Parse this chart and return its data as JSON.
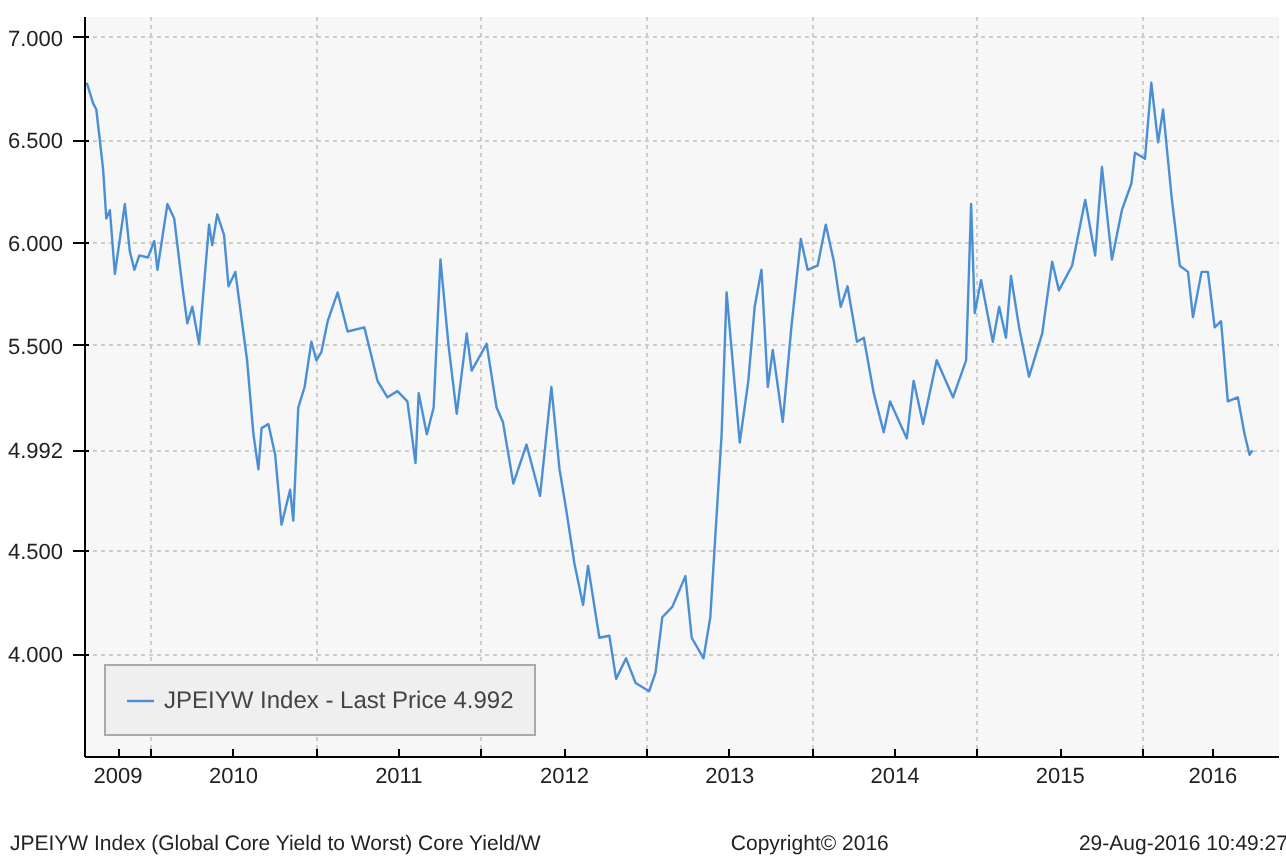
{
  "chart_data": {
    "type": "line",
    "xlim": [
      "2009-08-08",
      "2016-10-27"
    ],
    "ylim": [
      3.5,
      7.1
    ],
    "xticks": [
      {
        "value": "2009-10-20",
        "label": "2009"
      },
      {
        "value": "2010-01-01",
        "label": null
      },
      {
        "value": "2010-07-02",
        "label": "2010"
      },
      {
        "value": "2011-01-01",
        "label": null
      },
      {
        "value": "2011-07-02",
        "label": "2011"
      },
      {
        "value": "2012-01-01",
        "label": null
      },
      {
        "value": "2012-07-02",
        "label": "2012"
      },
      {
        "value": "2013-01-01",
        "label": null
      },
      {
        "value": "2013-07-02",
        "label": "2013"
      },
      {
        "value": "2014-01-01",
        "label": null
      },
      {
        "value": "2014-07-02",
        "label": "2014"
      },
      {
        "value": "2015-01-01",
        "label": null
      },
      {
        "value": "2015-07-02",
        "label": "2015"
      },
      {
        "value": "2016-01-01",
        "label": null
      },
      {
        "value": "2016-06-03",
        "label": "2016"
      }
    ],
    "yticks": [
      {
        "value": 4,
        "label": "4.000"
      },
      {
        "value": 4.5,
        "label": "4.500"
      },
      {
        "value": 4.992,
        "label": "4.992"
      },
      {
        "value": 5.5,
        "label": "5.500"
      },
      {
        "value": 6,
        "label": "6.000"
      },
      {
        "value": 6.5,
        "label": "6.500"
      },
      {
        "value": 7,
        "label": "7.000"
      }
    ],
    "grid": true,
    "legend": "bottom left",
    "marker": "none",
    "line_style": "solid",
    "series": [
      {
        "name": "JPEIYW Index - Last Price 4.992",
        "color": "#4a8fd6",
        "x": [
          "2009-08-12",
          "2009-08-26",
          "2009-09-02",
          "2009-09-17",
          "2009-09-24",
          "2009-10-02",
          "2009-10-13",
          "2009-11-04",
          "2009-11-15",
          "2009-11-25",
          "2009-12-06",
          "2009-12-25",
          "2010-01-08",
          "2010-01-15",
          "2010-02-06",
          "2010-02-21",
          "2010-03-11",
          "2010-03-22",
          "2010-04-02",
          "2010-04-17",
          "2010-05-09",
          "2010-05-16",
          "2010-05-27",
          "2010-06-11",
          "2010-06-21",
          "2010-07-06",
          "2010-08-01",
          "2010-08-15",
          "2010-08-26",
          "2010-09-02",
          "2010-09-17",
          "2010-10-02",
          "2010-10-16",
          "2010-11-04",
          "2010-11-11",
          "2010-11-22",
          "2010-12-06",
          "2010-12-21",
          "2011-01-01",
          "2011-01-12",
          "2011-01-26",
          "2011-02-17",
          "2011-03-11",
          "2011-04-17",
          "2011-05-16",
          "2011-06-07",
          "2011-06-29",
          "2011-07-21",
          "2011-08-08",
          "2011-08-15",
          "2011-09-02",
          "2011-09-17",
          "2011-10-02",
          "2011-10-20",
          "2011-11-07",
          "2011-11-29",
          "2011-12-10",
          "2012-01-12",
          "2012-02-03",
          "2012-02-17",
          "2012-03-11",
          "2012-04-09",
          "2012-05-09",
          "2012-06-03",
          "2012-06-21",
          "2012-07-06",
          "2012-07-24",
          "2012-08-12",
          "2012-08-23",
          "2012-09-17",
          "2012-10-09",
          "2012-10-24",
          "2012-11-15",
          "2012-12-06",
          "2013-01-05",
          "2013-01-19",
          "2013-02-03",
          "2013-02-25",
          "2013-03-26",
          "2013-04-09",
          "2013-05-05",
          "2013-05-20",
          "2013-06-14",
          "2013-06-25",
          "2013-07-24",
          "2013-08-12",
          "2013-08-26",
          "2013-09-10",
          "2013-09-24",
          "2013-10-05",
          "2013-10-27",
          "2013-11-15",
          "2013-12-06",
          "2013-12-21",
          "2014-01-12",
          "2014-01-30",
          "2014-02-17",
          "2014-03-04",
          "2014-03-19",
          "2014-04-09",
          "2014-04-24",
          "2014-05-16",
          "2014-06-07",
          "2014-06-21",
          "2014-07-28",
          "2014-08-12",
          "2014-09-02",
          "2014-10-02",
          "2014-11-07",
          "2014-12-06",
          "2014-12-17",
          "2014-12-25",
          "2015-01-08",
          "2015-02-03",
          "2015-02-17",
          "2015-03-04",
          "2015-03-15",
          "2015-04-02",
          "2015-04-24",
          "2015-05-23",
          "2015-06-14",
          "2015-06-29",
          "2015-07-28",
          "2015-08-26",
          "2015-09-17",
          "2015-10-02",
          "2015-10-24",
          "2015-11-15",
          "2015-12-06",
          "2015-12-14",
          "2016-01-05",
          "2016-01-19",
          "2016-02-03",
          "2016-02-14",
          "2016-03-04",
          "2016-03-22",
          "2016-04-09",
          "2016-04-20",
          "2016-05-09",
          "2016-05-23",
          "2016-06-07",
          "2016-06-21",
          "2016-07-06",
          "2016-07-28",
          "2016-08-12",
          "2016-08-23",
          "2016-08-29"
        ],
        "values": [
          6.78,
          6.68,
          6.65,
          6.36,
          6.12,
          6.16,
          5.85,
          6.19,
          5.96,
          5.87,
          5.94,
          5.93,
          6.01,
          5.87,
          6.19,
          6.12,
          5.79,
          5.61,
          5.69,
          5.51,
          6.09,
          5.99,
          6.14,
          6.04,
          5.79,
          5.86,
          5.43,
          5.07,
          4.9,
          5.1,
          5.12,
          4.97,
          4.63,
          4.8,
          4.65,
          5.2,
          5.3,
          5.52,
          5.43,
          5.47,
          5.62,
          5.76,
          5.57,
          5.59,
          5.33,
          5.25,
          5.28,
          5.23,
          4.93,
          5.27,
          5.07,
          5.2,
          5.92,
          5.5,
          5.17,
          5.56,
          5.38,
          5.51,
          5.2,
          5.13,
          4.83,
          5.02,
          4.77,
          5.3,
          4.9,
          4.7,
          4.44,
          4.24,
          4.43,
          4.08,
          4.09,
          3.88,
          3.98,
          3.86,
          3.82,
          3.91,
          4.18,
          4.23,
          4.38,
          4.08,
          3.98,
          4.18,
          5.07,
          5.76,
          5.03,
          5.33,
          5.69,
          5.87,
          5.3,
          5.48,
          5.13,
          5.59,
          6.02,
          5.87,
          5.89,
          6.09,
          5.91,
          5.69,
          5.79,
          5.52,
          5.54,
          5.27,
          5.08,
          5.23,
          5.05,
          5.33,
          5.12,
          5.43,
          5.25,
          5.43,
          6.19,
          5.66,
          5.82,
          5.52,
          5.69,
          5.54,
          5.84,
          5.59,
          5.35,
          5.56,
          5.91,
          5.77,
          5.89,
          6.21,
          5.94,
          6.37,
          5.92,
          6.16,
          6.29,
          6.44,
          6.41,
          6.78,
          6.49,
          6.65,
          6.22,
          5.89,
          5.86,
          5.64,
          5.86,
          5.86,
          5.59,
          5.62,
          5.23,
          5.25,
          5.07,
          4.97,
          4.992
        ]
      }
    ],
    "annotations": [
      "JPEIYW Index (Global Core Yield to Worst) Core Yield/W",
      "Copyright© 2016",
      "29-Aug-2016 10:49:27"
    ]
  }
}
